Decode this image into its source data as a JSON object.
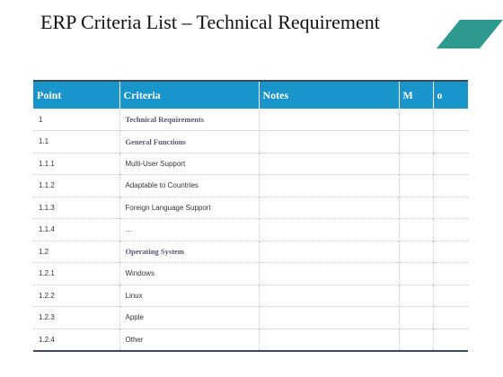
{
  "title": "ERP Criteria List – Technical Requirement",
  "accent_color": "#1a95cb",
  "corner_shape_color": "#2e9a8f",
  "table": {
    "headers": [
      "Point",
      "Criteria",
      "Notes",
      "M",
      "o"
    ],
    "rows": [
      {
        "point": "1",
        "criteria": "Technical Requirements",
        "notes": "",
        "m": "",
        "o": "",
        "section": true
      },
      {
        "point": "1.1",
        "criteria": "General Functions",
        "notes": "",
        "m": "",
        "o": "",
        "section": true
      },
      {
        "point": "1.1.1",
        "criteria": "Multi-User Support",
        "notes": "",
        "m": "",
        "o": "",
        "section": false
      },
      {
        "point": "1.1.2",
        "criteria": "Adaptable to Countries",
        "notes": "",
        "m": "",
        "o": "",
        "section": false
      },
      {
        "point": "1.1.3",
        "criteria": "Foreign Language Support",
        "notes": "",
        "m": "",
        "o": "",
        "section": false
      },
      {
        "point": "1.1.4",
        "criteria": "…",
        "notes": "",
        "m": "",
        "o": "",
        "section": false
      },
      {
        "point": "1.2",
        "criteria": "Operating System",
        "notes": "",
        "m": "",
        "o": "",
        "section": true
      },
      {
        "point": "1.2.1",
        "criteria": "Windows",
        "notes": "",
        "m": "",
        "o": "",
        "section": false
      },
      {
        "point": "1.2.2",
        "criteria": "Linux",
        "notes": "",
        "m": "",
        "o": "",
        "section": false
      },
      {
        "point": "1.2.3",
        "criteria": "Apple",
        "notes": "",
        "m": "",
        "o": "",
        "section": false
      },
      {
        "point": "1.2.4",
        "criteria": "Other",
        "notes": "",
        "m": "",
        "o": "",
        "section": false
      }
    ]
  }
}
